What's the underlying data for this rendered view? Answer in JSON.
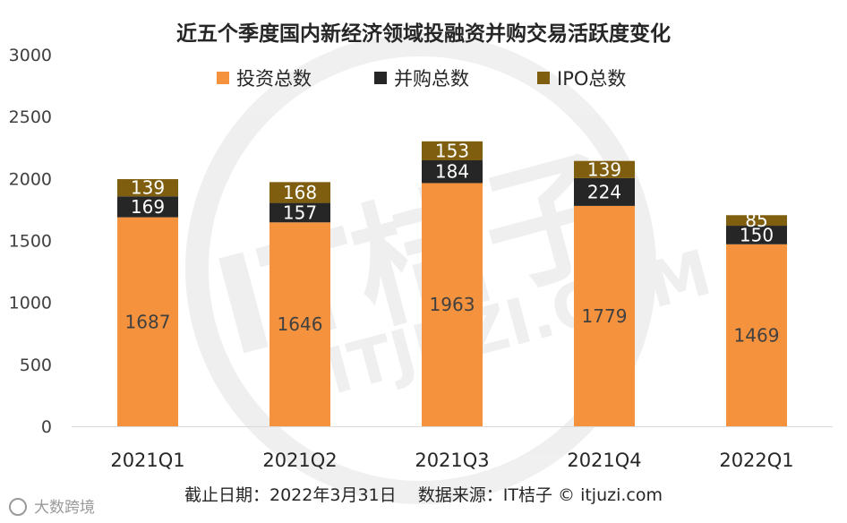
{
  "chart_data": {
    "type": "bar",
    "stacked": true,
    "title": "近五个季度国内新经济领域投融资并购交易活跃度变化",
    "categories": [
      "2021Q1",
      "2021Q2",
      "2021Q3",
      "2021Q4",
      "2022Q1"
    ],
    "series": [
      {
        "name": "投资总数",
        "color": "#F5923E",
        "label_color": "#404040",
        "values": [
          1687,
          1646,
          1963,
          1779,
          1469
        ]
      },
      {
        "name": "并购总数",
        "color": "#262626",
        "label_color": "#ffffff",
        "values": [
          169,
          157,
          184,
          224,
          150
        ]
      },
      {
        "name": "IPO总数",
        "color": "#7F5F0F",
        "label_color": "#ffffff",
        "values": [
          139,
          168,
          153,
          139,
          85
        ]
      }
    ],
    "ylim": [
      0,
      3000
    ],
    "yticks": [
      0,
      500,
      1000,
      1500,
      2000,
      2500,
      3000
    ],
    "grid": false,
    "legend_position": "top"
  },
  "footer": {
    "note": "截止日期：2022年3月31日    数据来源：IT桔子 © itjuzi.com"
  },
  "branding": {
    "watermark_text": "IT桔子",
    "watermark_sub": "ITJUZI.COM",
    "corner_logo_text": "大数跨境"
  }
}
